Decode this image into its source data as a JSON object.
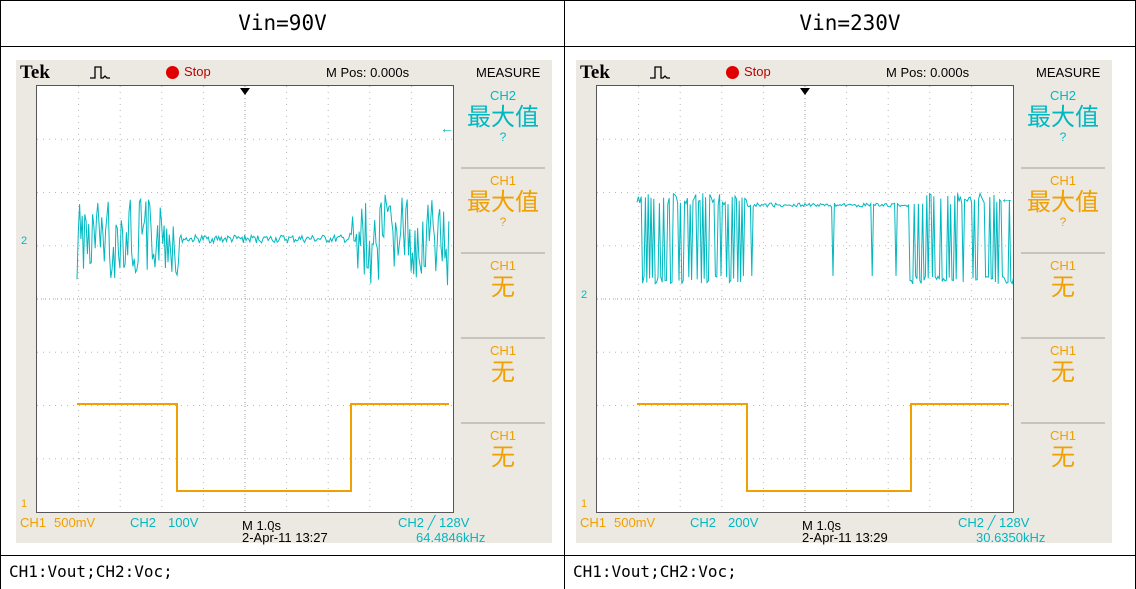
{
  "columns": [
    {
      "header": "Vin=90V",
      "caption": "CH1:Vout;CH2:Voc;",
      "scope": {
        "brand": "Tek",
        "state": "Stop",
        "mpos": "M Pos: 0.000s",
        "menu": "MEASURE",
        "ch1_scale": "500mV",
        "ch2_scale": "100V",
        "timebase": "M 1.0ฺs",
        "trigger": "CH2 ╱ 128V",
        "date": "2-Apr-11 13:27",
        "freq": "64.4846kHz",
        "ch1_label": "CH1",
        "ch2_label": "CH2",
        "ch2_marker": "2",
        "ch1_marker": "1",
        "measurements": [
          {
            "ch": "CH2",
            "value": "最大值",
            "q": "?",
            "color": "#00b8c0"
          },
          {
            "ch": "CH1",
            "value": "最大值",
            "q": "?",
            "color": "#f0a000"
          },
          {
            "ch": "CH1",
            "value": "无",
            "q": "",
            "color": "#f0a000"
          },
          {
            "ch": "CH1",
            "value": "无",
            "q": "",
            "color": "#f0a000"
          },
          {
            "ch": "CH1",
            "value": "无",
            "q": "",
            "color": "#f0a000"
          }
        ]
      }
    },
    {
      "header": "Vin=230V",
      "caption": "CH1:Vout;CH2:Voc;",
      "scope": {
        "brand": "Tek",
        "state": "Stop",
        "mpos": "M Pos: 0.000s",
        "menu": "MEASURE",
        "ch1_scale": "500mV",
        "ch2_scale": "200V",
        "timebase": "M 1.0ฺs",
        "trigger": "CH2 ╱ 128V",
        "date": "2-Apr-11 13:29",
        "freq": "30.6350kHz",
        "ch1_label": "CH1",
        "ch2_label": "CH2",
        "ch2_marker": "2",
        "ch1_marker": "1",
        "measurements": [
          {
            "ch": "CH2",
            "value": "最大值",
            "q": "?",
            "color": "#00b8c0"
          },
          {
            "ch": "CH1",
            "value": "最大值",
            "q": "?",
            "color": "#f0a000"
          },
          {
            "ch": "CH1",
            "value": "无",
            "q": "",
            "color": "#f0a000"
          },
          {
            "ch": "CH1",
            "value": "无",
            "q": "",
            "color": "#f0a000"
          },
          {
            "ch": "CH1",
            "value": "无",
            "q": "",
            "color": "#f0a000"
          }
        ]
      }
    }
  ],
  "colors": {
    "ch1": "#f0a000",
    "ch2": "#00b8c0"
  }
}
